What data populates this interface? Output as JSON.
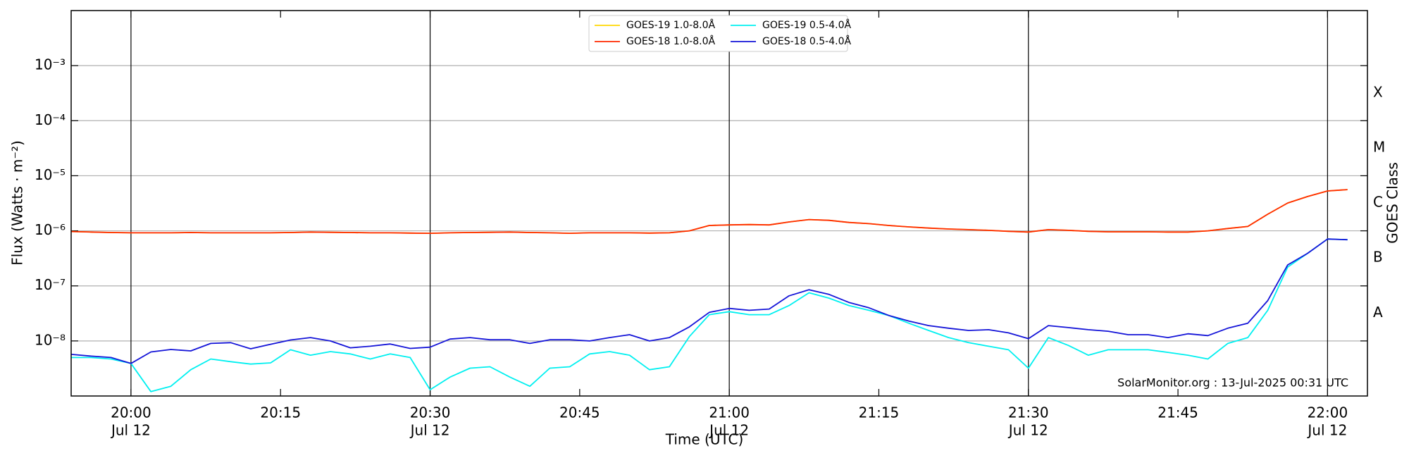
{
  "chart_data": {
    "type": "line",
    "xlabel": "Time (UTC)",
    "ylabel": "Flux (Watts · m⁻²)",
    "y2label": "GOES Class",
    "annotation": "SolarMonitor.org : 13-Jul-2025 00:31 UTC",
    "log_y": true,
    "grid": "y",
    "legend": "upper center",
    "x": [
      "19:54",
      "19:56",
      "19:58",
      "20:00",
      "20:02",
      "20:04",
      "20:06",
      "20:08",
      "20:10",
      "20:12",
      "20:14",
      "20:16",
      "20:18",
      "20:20",
      "20:22",
      "20:24",
      "20:26",
      "20:28",
      "20:30",
      "20:32",
      "20:34",
      "20:36",
      "20:38",
      "20:40",
      "20:42",
      "20:44",
      "20:46",
      "20:48",
      "20:50",
      "20:52",
      "20:54",
      "20:56",
      "20:58",
      "21:00",
      "21:02",
      "21:04",
      "21:06",
      "21:08",
      "21:10",
      "21:12",
      "21:14",
      "21:16",
      "21:18",
      "21:20",
      "21:22",
      "21:24",
      "21:26",
      "21:28",
      "21:30",
      "21:32",
      "21:34",
      "21:36",
      "21:38",
      "21:40",
      "21:42",
      "21:44",
      "21:46",
      "21:48",
      "21:50",
      "21:52",
      "21:54",
      "21:56",
      "21:58",
      "22:00",
      "22:02"
    ],
    "xlim": [
      "19:54",
      "22:04"
    ],
    "xticks": [
      {
        "value": "20:00",
        "label": [
          "20:00",
          "Jul 12"
        ]
      },
      {
        "value": "20:15",
        "label": [
          "20:15"
        ]
      },
      {
        "value": "20:30",
        "label": [
          "20:30",
          "Jul 12"
        ]
      },
      {
        "value": "20:45",
        "label": [
          "20:45"
        ]
      },
      {
        "value": "21:00",
        "label": [
          "21:00",
          "Jul 12"
        ]
      },
      {
        "value": "21:15",
        "label": [
          "21:15"
        ]
      },
      {
        "value": "21:30",
        "label": [
          "21:30",
          "Jul 12"
        ]
      },
      {
        "value": "21:45",
        "label": [
          "21:45"
        ]
      },
      {
        "value": "22:00",
        "label": [
          "22:00",
          "Jul 12"
        ]
      }
    ],
    "ylim": [
      1e-09,
      0.01
    ],
    "yticks": [
      {
        "value": 1e-08,
        "label": "10⁻⁸"
      },
      {
        "value": 1e-07,
        "label": "10⁻⁷"
      },
      {
        "value": 1e-06,
        "label": "10⁻⁶"
      },
      {
        "value": 1e-05,
        "label": "10⁻⁵"
      },
      {
        "value": 0.0001,
        "label": "10⁻⁴"
      },
      {
        "value": 0.001,
        "label": "10⁻³"
      }
    ],
    "y2lim": [
      1e-09,
      0.01
    ],
    "y2ticks": [
      {
        "value": 3.2e-08,
        "label": "A"
      },
      {
        "value": 3.2e-07,
        "label": "B"
      },
      {
        "value": 3.2e-06,
        "label": "C"
      },
      {
        "value": 3.2e-05,
        "label": "M"
      },
      {
        "value": 0.00032,
        "label": "X"
      }
    ],
    "series": [
      {
        "name": "GOES-19 1.0-8.0Å",
        "color": "#ffd700",
        "values": [
          9.7e-07,
          9.5e-07,
          9.3e-07,
          9.2e-07,
          9.2e-07,
          9.2e-07,
          9.3e-07,
          9.2e-07,
          9.2e-07,
          9.2e-07,
          9.2e-07,
          9.3e-07,
          9.5e-07,
          9.4e-07,
          9.3e-07,
          9.2e-07,
          9.2e-07,
          9.1e-07,
          9e-07,
          9.2e-07,
          9.3e-07,
          9.4e-07,
          9.5e-07,
          9.3e-07,
          9.2e-07,
          9e-07,
          9.2e-07,
          9.2e-07,
          9.2e-07,
          9.1e-07,
          9.2e-07,
          1e-06,
          1.25e-06,
          1.28e-06,
          1.3e-06,
          1.28e-06,
          1.45e-06,
          1.6e-06,
          1.55e-06,
          1.42e-06,
          1.35e-06,
          1.25e-06,
          1.18e-06,
          1.12e-06,
          1.08e-06,
          1.05e-06,
          1.02e-06,
          9.8e-07,
          9.5e-07,
          1.05e-06,
          1.02e-06,
          9.8e-07,
          9.6e-07,
          9.6e-07,
          9.6e-07,
          9.5e-07,
          9.5e-07,
          1e-06,
          1.1e-06,
          1.2e-06,
          2e-06,
          3.2e-06,
          4.2e-06,
          5.3e-06,
          5.6e-06
        ]
      },
      {
        "name": "GOES-18 1.0-8.0Å",
        "color": "#ff2a00",
        "values": [
          9.7e-07,
          9.5e-07,
          9.3e-07,
          9.2e-07,
          9.2e-07,
          9.2e-07,
          9.3e-07,
          9.2e-07,
          9.2e-07,
          9.2e-07,
          9.2e-07,
          9.3e-07,
          9.5e-07,
          9.4e-07,
          9.3e-07,
          9.2e-07,
          9.2e-07,
          9.1e-07,
          9e-07,
          9.2e-07,
          9.3e-07,
          9.4e-07,
          9.5e-07,
          9.3e-07,
          9.2e-07,
          9e-07,
          9.2e-07,
          9.2e-07,
          9.2e-07,
          9.1e-07,
          9.2e-07,
          1e-06,
          1.25e-06,
          1.28e-06,
          1.3e-06,
          1.28e-06,
          1.45e-06,
          1.6e-06,
          1.55e-06,
          1.42e-06,
          1.35e-06,
          1.25e-06,
          1.18e-06,
          1.12e-06,
          1.08e-06,
          1.05e-06,
          1.02e-06,
          9.8e-07,
          9.5e-07,
          1.05e-06,
          1.02e-06,
          9.8e-07,
          9.6e-07,
          9.6e-07,
          9.6e-07,
          9.5e-07,
          9.5e-07,
          1e-06,
          1.1e-06,
          1.2e-06,
          2e-06,
          3.2e-06,
          4.2e-06,
          5.3e-06,
          5.6e-06
        ]
      },
      {
        "name": "GOES-19 0.5-4.0Å",
        "color": "#00f0f0",
        "values": [
          5e-09,
          5e-09,
          4.7e-09,
          3.9e-09,
          1.2e-09,
          1.5e-09,
          3e-09,
          4.7e-09,
          4.2e-09,
          3.8e-09,
          4e-09,
          6.9e-09,
          5.5e-09,
          6.4e-09,
          5.8e-09,
          4.7e-09,
          5.8e-09,
          5e-09,
          1.3e-09,
          2.2e-09,
          3.2e-09,
          3.4e-09,
          2.2e-09,
          1.5e-09,
          3.2e-09,
          3.4e-09,
          5.8e-09,
          6.4e-09,
          5.5e-09,
          3e-09,
          3.4e-09,
          1.2e-08,
          3e-08,
          3.4e-08,
          3e-08,
          3e-08,
          4.4e-08,
          7.5e-08,
          6e-08,
          4.4e-08,
          3.6e-08,
          2.9e-08,
          2.1e-08,
          1.55e-08,
          1.15e-08,
          9.3e-09,
          8e-09,
          6.9e-09,
          3.2e-09,
          1.15e-08,
          8.3e-09,
          5.5e-09,
          6.9e-09,
          6.9e-09,
          6.9e-09,
          6.2e-09,
          5.5e-09,
          4.7e-09,
          9e-09,
          1.15e-08,
          3.6e-08,
          2.2e-07,
          3.9e-07,
          7.1e-07,
          6.9e-07
        ]
      },
      {
        "name": "GOES-18 0.5-4.0Å",
        "color": "#1414d8",
        "values": [
          5.7e-09,
          5.3e-09,
          5e-09,
          3.9e-09,
          6.3e-09,
          7e-09,
          6.6e-09,
          9e-09,
          9.3e-09,
          7.2e-09,
          8.7e-09,
          1.04e-08,
          1.15e-08,
          1e-08,
          7.5e-09,
          8e-09,
          8.8e-09,
          7.3e-09,
          7.7e-09,
          1.08e-08,
          1.15e-08,
          1.05e-08,
          1.05e-08,
          9e-09,
          1.05e-08,
          1.05e-08,
          1e-08,
          1.15e-08,
          1.3e-08,
          1e-08,
          1.15e-08,
          1.8e-08,
          3.3e-08,
          3.9e-08,
          3.6e-08,
          3.8e-08,
          6.6e-08,
          8.5e-08,
          7e-08,
          5e-08,
          4e-08,
          2.9e-08,
          2.3e-08,
          1.9e-08,
          1.7e-08,
          1.55e-08,
          1.6e-08,
          1.4e-08,
          1.1e-08,
          1.9e-08,
          1.75e-08,
          1.6e-08,
          1.5e-08,
          1.3e-08,
          1.3e-08,
          1.15e-08,
          1.35e-08,
          1.25e-08,
          1.7e-08,
          2.1e-08,
          5.4e-08,
          2.4e-07,
          3.9e-07,
          7.1e-07,
          6.9e-07
        ]
      }
    ]
  }
}
